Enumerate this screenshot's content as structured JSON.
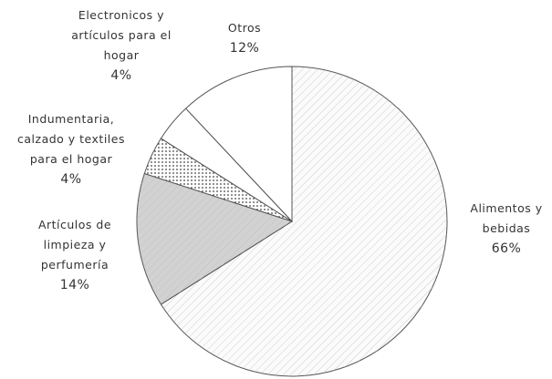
{
  "chart_data": {
    "type": "pie",
    "categories": [
      "Alimentos y bebidas",
      "Artículos de limpieza y perfumería",
      "Indumentaria, calzado y textiles para el hogar",
      "Electronicos y artículos para el hogar",
      "Otros"
    ],
    "values": [
      66,
      14,
      4,
      4,
      12
    ],
    "value_labels": [
      "66%",
      "14%",
      "4%",
      "4%",
      "12%"
    ],
    "colors": [
      "#fbfbfb",
      "#d2d2d2",
      "#ffffff",
      "#ffffff",
      "#ffffff"
    ],
    "patterns": [
      "hatch",
      "hatch",
      "dots",
      "none",
      "none"
    ]
  }
}
